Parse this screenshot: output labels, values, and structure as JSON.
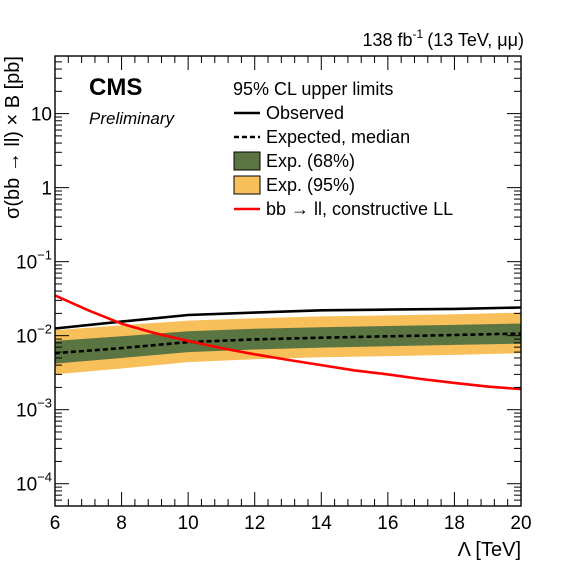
{
  "chart_data": {
    "type": "line",
    "header": {
      "lumi_value": "138 fb",
      "lumi_exponent": "-1",
      "lumi_conditions": "(13 TeV, μμ)"
    },
    "experiment": "CMS",
    "status": "Preliminary",
    "legend_title": "95% CL upper limits",
    "legend_placement": "top-right",
    "xlabel": "Λ [TeV]",
    "ylabel": "σ(bb → ll) × B [pb]",
    "xlim": [
      6,
      20
    ],
    "ylim": [
      5e-05,
      60
    ],
    "yscale": "log",
    "grid": false,
    "x_ticks": [
      6,
      8,
      10,
      12,
      14,
      16,
      18,
      20
    ],
    "y_ticks": [
      {
        "value": 0.0001,
        "base": "10",
        "exp": "−4"
      },
      {
        "value": 0.001,
        "base": "10",
        "exp": "−3"
      },
      {
        "value": 0.01,
        "base": "10",
        "exp": "−2"
      },
      {
        "value": 0.1,
        "base": "10",
        "exp": "−1"
      },
      {
        "value": 1,
        "base": "1",
        "exp": ""
      },
      {
        "value": 10,
        "base": "10",
        "exp": ""
      }
    ],
    "series": [
      {
        "name": "Observed",
        "style": "solid",
        "color": "#000000",
        "x": [
          6,
          8,
          10,
          12,
          14,
          16,
          18,
          20
        ],
        "y": [
          0.0125,
          0.0155,
          0.019,
          0.0205,
          0.022,
          0.0225,
          0.023,
          0.024
        ]
      },
      {
        "name": "Expected, median",
        "style": "dashed",
        "color": "#000000",
        "x": [
          6,
          8,
          10,
          12,
          14,
          16,
          18,
          20
        ],
        "y": [
          0.0058,
          0.0068,
          0.0082,
          0.0089,
          0.0094,
          0.0098,
          0.0102,
          0.0107
        ]
      },
      {
        "name": "bb → ll, constructive LL",
        "style": "solid",
        "color": "#ff0000",
        "x": [
          6,
          7,
          8,
          9,
          10,
          11,
          12,
          13,
          14,
          15,
          16,
          17,
          18,
          19,
          20
        ],
        "y": [
          0.035,
          0.022,
          0.0145,
          0.0108,
          0.0085,
          0.0068,
          0.0056,
          0.0047,
          0.004,
          0.0034,
          0.003,
          0.0026,
          0.0023,
          0.00205,
          0.0019
        ]
      }
    ],
    "bands": [
      {
        "name": "Exp. (95%)",
        "color": "#f8c05a",
        "x": [
          6,
          8,
          10,
          12,
          14,
          16,
          18,
          20
        ],
        "low": [
          0.003,
          0.0036,
          0.0044,
          0.0048,
          0.0051,
          0.0053,
          0.0055,
          0.0058
        ],
        "high": [
          0.0118,
          0.0138,
          0.016,
          0.0172,
          0.0182,
          0.0188,
          0.0195,
          0.0205
        ]
      },
      {
        "name": "Exp. (68%)",
        "color": "#5b7542",
        "x": [
          6,
          8,
          10,
          12,
          14,
          16,
          18,
          20
        ],
        "low": [
          0.0042,
          0.005,
          0.006,
          0.0065,
          0.0069,
          0.0072,
          0.0075,
          0.0078
        ],
        "high": [
          0.0085,
          0.0098,
          0.0115,
          0.0124,
          0.013,
          0.0135,
          0.014,
          0.0146
        ]
      }
    ],
    "legend": [
      {
        "label": "Observed",
        "kind": "line",
        "style": "solid",
        "color": "#000000"
      },
      {
        "label": "Expected, median",
        "kind": "line",
        "style": "dashed",
        "color": "#000000"
      },
      {
        "label": "Exp. (68%)",
        "kind": "box",
        "color": "#5b7542"
      },
      {
        "label": "Exp. (95%)",
        "kind": "box",
        "color": "#f8c05a"
      },
      {
        "label": "bb → ll, constructive LL",
        "kind": "line",
        "style": "solid",
        "color": "#ff0000"
      }
    ]
  }
}
